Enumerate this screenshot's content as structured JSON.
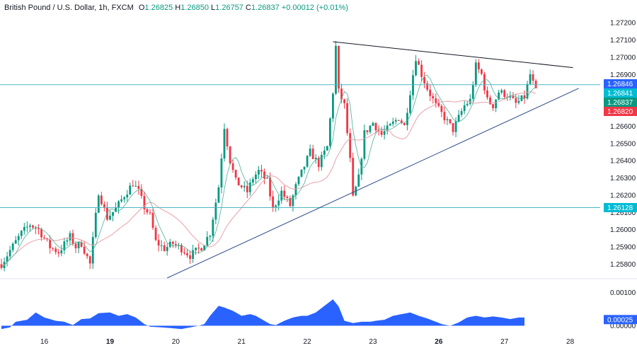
{
  "legend": {
    "symbol": "British Pound / U.S. Dollar, 1h, FXCM",
    "o_label": "O",
    "o_value": "1.26825",
    "h_label": "H",
    "h_value": "1.26850",
    "l_label": "L",
    "l_value": "1.26757",
    "c_label": "C",
    "c_value": "1.26837",
    "change": "+0.00012 (+0.01%)"
  },
  "colors": {
    "up": "#089981",
    "down": "#f23645",
    "ma": "#e8a0a8",
    "ma_fast": "#4caf96",
    "hline": "#4fb7c4",
    "trend_upper": "#131722",
    "trend_lower": "#2e4a8a",
    "oscillator": "#2962ff"
  },
  "chart_data": [
    {
      "type": "candlestick",
      "title": "British Pound / U.S. Dollar, 1h, FXCM",
      "ylim": [
        1.2572,
        1.2725
      ],
      "y_ticks": [
        "1.27200",
        "1.27100",
        "1.27000",
        "1.26900",
        "1.26800",
        "1.26700",
        "1.26600",
        "1.26500",
        "1.26400",
        "1.26300",
        "1.26200",
        "1.26100",
        "1.26000",
        "1.25900",
        "1.25800"
      ],
      "x_ticks": [
        "16",
        "19",
        "20",
        "21",
        "22",
        "23",
        "26",
        "27",
        "28"
      ],
      "x_tick_bars": [
        15,
        38,
        61,
        84,
        107,
        130,
        153,
        176,
        199
      ],
      "bars_total": 210,
      "horizontal_levels": [
        1.26841,
        1.26128
      ],
      "price_tags": [
        {
          "label": "1.26846",
          "value": 1.26846,
          "color": "#2962ff"
        },
        {
          "label": "1.26841",
          "value": 1.26841,
          "color": "#00bcd4"
        },
        {
          "label": "1.26837",
          "value": 1.26837,
          "color": "#089981"
        },
        {
          "label": "1.26820",
          "value": 1.2682,
          "color": "#f23645"
        },
        {
          "label": "1.26128",
          "value": 1.26128,
          "color": "#00bcd4"
        }
      ],
      "trendlines": [
        {
          "from": [
            116,
            1.2709
          ],
          "to": [
            200,
            1.2694
          ]
        },
        {
          "from": [
            58,
            1.2572
          ],
          "to": [
            202,
            1.2682
          ]
        }
      ],
      "anchors": [
        [
          0,
          1.258
        ],
        [
          3,
          1.2588
        ],
        [
          7,
          1.2598
        ],
        [
          10,
          1.2603
        ],
        [
          13,
          1.26
        ],
        [
          17,
          1.259
        ],
        [
          20,
          1.2587
        ],
        [
          24,
          1.2596
        ],
        [
          26,
          1.259
        ],
        [
          28,
          1.2592
        ],
        [
          31,
          1.258
        ],
        [
          34,
          1.2622
        ],
        [
          37,
          1.2607
        ],
        [
          40,
          1.2612
        ],
        [
          43,
          1.262
        ],
        [
          46,
          1.2627
        ],
        [
          48,
          1.2622
        ],
        [
          50,
          1.2613
        ],
        [
          52,
          1.2608
        ],
        [
          54,
          1.2593
        ],
        [
          57,
          1.2589
        ],
        [
          60,
          1.2592
        ],
        [
          63,
          1.2589
        ],
        [
          66,
          1.2585
        ],
        [
          70,
          1.259
        ],
        [
          73,
          1.2598
        ],
        [
          76,
          1.2625
        ],
        [
          78,
          1.266
        ],
        [
          80,
          1.264
        ],
        [
          82,
          1.2628
        ],
        [
          86,
          1.2622
        ],
        [
          88,
          1.263
        ],
        [
          90,
          1.2634
        ],
        [
          93,
          1.2628
        ],
        [
          95,
          1.2612
        ],
        [
          98,
          1.2622
        ],
        [
          101,
          1.2614
        ],
        [
          103,
          1.2625
        ],
        [
          106,
          1.2637
        ],
        [
          108,
          1.2645
        ],
        [
          111,
          1.2638
        ],
        [
          114,
          1.2648
        ],
        [
          116,
          1.268
        ],
        [
          117,
          1.2706
        ],
        [
          118,
          1.268
        ],
        [
          120,
          1.2672
        ],
        [
          122,
          1.264
        ],
        [
          123,
          1.2618
        ],
        [
          125,
          1.263
        ],
        [
          127,
          1.2656
        ],
        [
          130,
          1.2662
        ],
        [
          133,
          1.2655
        ],
        [
          136,
          1.266
        ],
        [
          139,
          1.2665
        ],
        [
          141,
          1.266
        ],
        [
          143,
          1.268
        ],
        [
          145,
          1.27
        ],
        [
          147,
          1.269
        ],
        [
          149,
          1.2682
        ],
        [
          152,
          1.2672
        ],
        [
          155,
          1.2665
        ],
        [
          158,
          1.2658
        ],
        [
          160,
          1.2665
        ],
        [
          162,
          1.2672
        ],
        [
          164,
          1.2675
        ],
        [
          166,
          1.2695
        ],
        [
          168,
          1.269
        ],
        [
          170,
          1.2675
        ],
        [
          172,
          1.2672
        ],
        [
          174,
          1.268
        ],
        [
          177,
          1.2678
        ],
        [
          180,
          1.2673
        ],
        [
          183,
          1.2677
        ],
        [
          185,
          1.269
        ],
        [
          187,
          1.268
        ]
      ]
    },
    {
      "type": "area",
      "ylim": [
        -0.00016,
        0.0014
      ],
      "y_ticks": [
        "0.00100",
        "0.00000"
      ],
      "value_tag": {
        "label": "0.00025",
        "value": 0.00025,
        "color": "#2962ff"
      },
      "anchors": [
        [
          0,
          -0.0001
        ],
        [
          3,
          -5e-05
        ],
        [
          5,
          0.00012
        ],
        [
          9,
          0.00018
        ],
        [
          12,
          0.0004
        ],
        [
          15,
          0.00025
        ],
        [
          19,
          0.00015
        ],
        [
          22,
          0.00012
        ],
        [
          25,
          2e-05
        ],
        [
          28,
          0.0002
        ],
        [
          31,
          0.00022
        ],
        [
          34,
          0.00038
        ],
        [
          38,
          0.0004
        ],
        [
          41,
          0.0003
        ],
        [
          44,
          0.00035
        ],
        [
          47,
          0.00025
        ],
        [
          50,
          5e-05
        ],
        [
          52,
          -3e-05
        ],
        [
          56,
          -5e-05
        ],
        [
          59,
          -7e-05
        ],
        [
          63,
          -0.0001
        ],
        [
          66,
          -5e-05
        ],
        [
          69,
          0.0
        ],
        [
          71,
          5e-05
        ],
        [
          73,
          0.0003
        ],
        [
          76,
          0.0006
        ],
        [
          78,
          0.00055
        ],
        [
          81,
          0.00045
        ],
        [
          84,
          0.0003
        ],
        [
          87,
          0.00035
        ],
        [
          89,
          0.0003
        ],
        [
          91,
          0.0002
        ],
        [
          94,
          5e-05
        ],
        [
          96,
          2e-05
        ],
        [
          99,
          0.00015
        ],
        [
          102,
          0.00025
        ],
        [
          105,
          0.0003
        ],
        [
          107,
          0.0003
        ],
        [
          110,
          0.0004
        ],
        [
          113,
          0.0006
        ],
        [
          116,
          0.0008
        ],
        [
          118,
          0.00058
        ],
        [
          120,
          0.00015
        ],
        [
          123,
          8e-05
        ],
        [
          126,
          0.00012
        ],
        [
          129,
          0.00012
        ],
        [
          131,
          0.00015
        ],
        [
          134,
          0.00018
        ],
        [
          137,
          0.0003
        ],
        [
          140,
          0.00035
        ],
        [
          143,
          0.0004
        ],
        [
          146,
          0.0003
        ],
        [
          149,
          0.00022
        ],
        [
          152,
          0.00012
        ],
        [
          154,
          5e-05
        ],
        [
          157,
          0.0
        ],
        [
          160,
          0.0001
        ],
        [
          163,
          0.00025
        ],
        [
          166,
          0.0003
        ],
        [
          169,
          0.00025
        ],
        [
          172,
          0.00028
        ],
        [
          175,
          0.00025
        ],
        [
          178,
          0.0002
        ],
        [
          181,
          0.00025
        ],
        [
          183,
          0.00025
        ]
      ]
    }
  ]
}
